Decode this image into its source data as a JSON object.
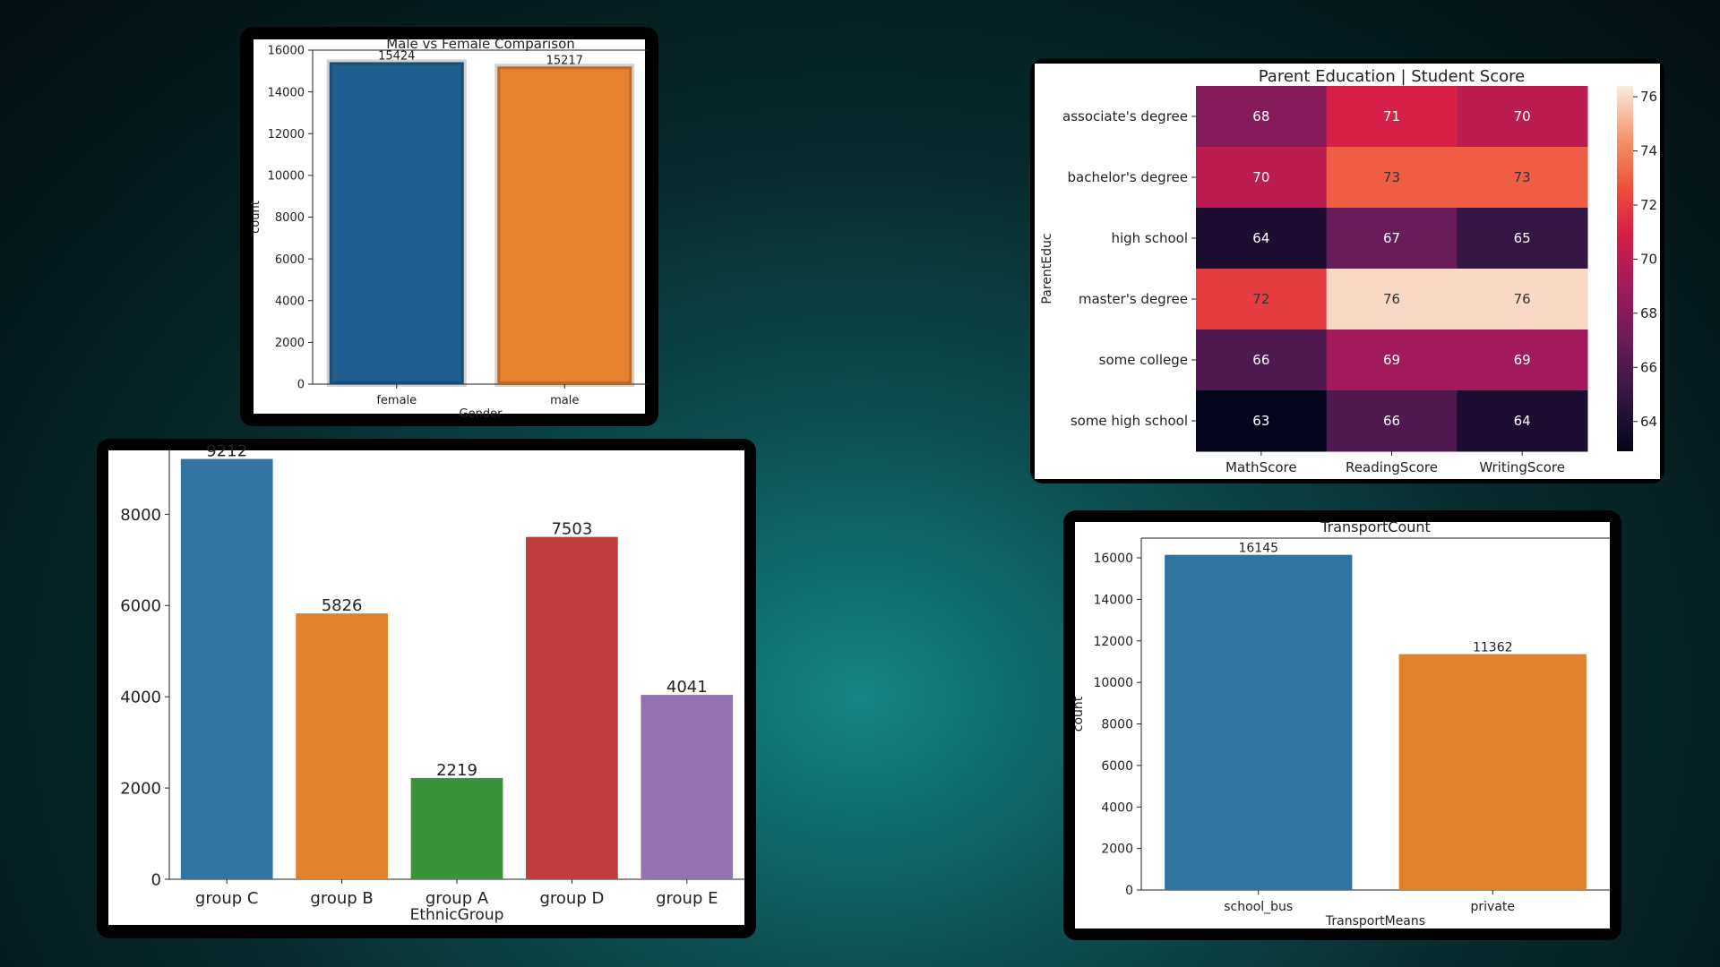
{
  "chart_data": [
    {
      "type": "bar",
      "title": "Male vs Female Comparison",
      "xlabel": "Gender",
      "ylabel": "count",
      "categories": [
        "female",
        "male"
      ],
      "values": [
        15424,
        15217
      ],
      "data_labels": [
        "15424",
        "15217"
      ],
      "ylim": [
        0,
        16000
      ],
      "yticks": [
        0,
        2000,
        4000,
        6000,
        8000,
        10000,
        12000,
        14000,
        16000
      ],
      "colors": [
        "#1f5f8f",
        "#e8822e"
      ],
      "grid": false
    },
    {
      "type": "heatmap",
      "title": "Parent Education | Student Score",
      "xlabel": "",
      "ylabel": "ParentEduc",
      "rows": [
        "associate's degree",
        "bachelor's degree",
        "high school",
        "master's degree",
        "some college",
        "some high school"
      ],
      "columns": [
        "MathScore",
        "ReadingScore",
        "WritingScore"
      ],
      "values": [
        [
          68,
          71,
          70
        ],
        [
          70,
          73,
          73
        ],
        [
          64,
          67,
          65
        ],
        [
          72,
          76,
          76
        ],
        [
          66,
          69,
          69
        ],
        [
          63,
          66,
          64
        ]
      ],
      "colorbar": {
        "min": 62.9,
        "max": 76.4,
        "ticks": [
          64,
          66,
          68,
          70,
          72,
          74,
          76
        ]
      }
    },
    {
      "type": "bar",
      "title": "",
      "xlabel": "EthnicGroup",
      "ylabel": "",
      "categories": [
        "group C",
        "group B",
        "group A",
        "group D",
        "group E"
      ],
      "values": [
        9212,
        5826,
        2219,
        7503,
        4041
      ],
      "data_labels": [
        "9212",
        "5826",
        "2219",
        "7503",
        "4041"
      ],
      "ylim": [
        0,
        9400
      ],
      "yticks": [
        0,
        2000,
        4000,
        6000,
        8000
      ],
      "colors": [
        "#3274a1",
        "#e1812c",
        "#3a923a",
        "#c03d3e",
        "#9372b2"
      ],
      "grid": false
    },
    {
      "type": "bar",
      "title": "TransportCount",
      "xlabel": "TransportMeans",
      "ylabel": "count",
      "categories": [
        "school_bus",
        "private"
      ],
      "values": [
        16145,
        11362
      ],
      "data_labels": [
        "16145",
        "11362"
      ],
      "ylim": [
        0,
        16950
      ],
      "yticks": [
        0,
        2000,
        4000,
        6000,
        8000,
        10000,
        12000,
        14000,
        16000
      ],
      "colors": [
        "#3274a1",
        "#e1812c"
      ],
      "grid": false
    }
  ]
}
